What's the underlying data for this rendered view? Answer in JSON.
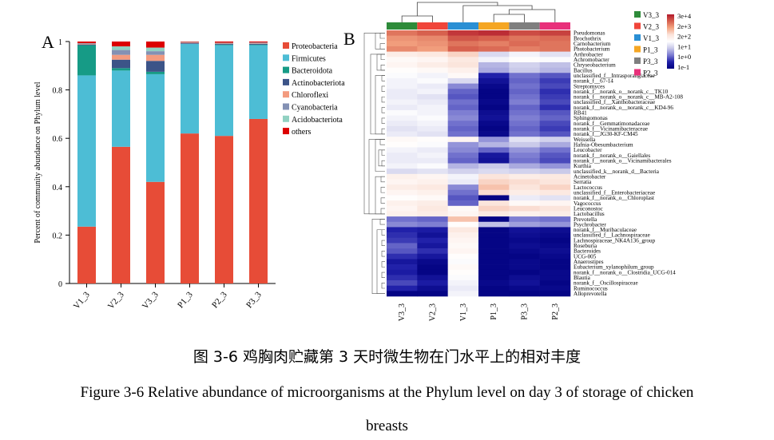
{
  "panel_labels": [
    "A",
    "B"
  ],
  "captions": {
    "cn": "图 3-6  鸡胸肉贮藏第 3 天时微生物在门水平上的相对丰度",
    "en_line1": "Figure 3-6 Relative abundance of microorganisms at the Phylum level on day 3 of storage of chicken",
    "en_line2": "breasts"
  },
  "chart_data": [
    {
      "type": "bar",
      "stacked": true,
      "panel": "A",
      "ylabel": "Percent of community abundance on Phylum level",
      "xlabel": "",
      "ylim": [
        0,
        1
      ],
      "yticks": [
        "0",
        "0.2",
        "0.4",
        "0.6",
        "0.8",
        "1"
      ],
      "categories": [
        "V1_3",
        "V2_3",
        "V3_3",
        "P1_3",
        "P2_3",
        "P3_3"
      ],
      "legend_position": "right",
      "series": [
        {
          "name": "Proteobacteria",
          "color": "#e74c37",
          "values": [
            0.235,
            0.565,
            0.42,
            0.62,
            0.61,
            0.68
          ]
        },
        {
          "name": "Firmicutes",
          "color": "#4dbdd5",
          "values": [
            0.625,
            0.315,
            0.445,
            0.37,
            0.375,
            0.305
          ]
        },
        {
          "name": "Bacteroidota",
          "color": "#169b86",
          "values": [
            0.125,
            0.01,
            0.01,
            0.0,
            0.002,
            0.002
          ]
        },
        {
          "name": "Actinobacteriota",
          "color": "#3c5488",
          "values": [
            0.003,
            0.035,
            0.045,
            0.003,
            0.003,
            0.004
          ]
        },
        {
          "name": "Chloroflexi",
          "color": "#f39b7f",
          "values": [
            0.002,
            0.02,
            0.025,
            0.002,
            0.002,
            0.002
          ]
        },
        {
          "name": "Cyanobacteria",
          "color": "#8491b4",
          "values": [
            0.002,
            0.02,
            0.015,
            0.002,
            0.002,
            0.002
          ]
        },
        {
          "name": "Acidobacteriota",
          "color": "#91d1c2",
          "values": [
            0.001,
            0.015,
            0.015,
            0.001,
            0.001,
            0.001
          ]
        },
        {
          "name": "others",
          "color": "#dc0000",
          "values": [
            0.007,
            0.02,
            0.025,
            0.002,
            0.005,
            0.004
          ]
        }
      ]
    },
    {
      "type": "heatmap",
      "panel": "B",
      "columns": [
        "V3_3",
        "V2_3",
        "V1_3",
        "P1_3",
        "P3_3",
        "P2_3"
      ],
      "column_colors": [
        "#2e8b3a",
        "#f0453a",
        "#2a8fd4",
        "#f5a623",
        "#7f7f7f",
        "#e8307a"
      ],
      "legend": {
        "groups": [
          {
            "name": "V3_3",
            "color": "#2e8b3a"
          },
          {
            "name": "V2_3",
            "color": "#f0453a"
          },
          {
            "name": "V1_3",
            "color": "#2a8fd4"
          },
          {
            "name": "P1_3",
            "color": "#f5a623"
          },
          {
            "name": "P3_3",
            "color": "#7f7f7f"
          },
          {
            "name": "P2_3",
            "color": "#e8307a"
          }
        ],
        "scale_ticks": [
          "3e+4",
          "2e+3",
          "2e+2",
          "1e+1",
          "1e+0",
          "1e-1"
        ],
        "scale_colors": [
          "#b2182b",
          "#d6604d",
          "#f4a582",
          "#fbe3da",
          "#ffffff",
          "#c7c7e8",
          "#7b7bd1",
          "#1f1fa8",
          "#00007f"
        ]
      },
      "scale_min": -1,
      "scale_max": 4.5,
      "rows": [
        "Pseudomonas",
        "Brochothrix",
        "Carnobacterium",
        "Photobacterium",
        "Arthrobacter",
        "Achromobacter",
        "Chryseobacterium",
        "Bacillus",
        "unclassified_f__Intrasporangiaceae",
        "norank_f__67-14",
        "Streptomyces",
        "norank_f__norank_o__norank_c__TK10",
        "norank_f__norank_o__norank_c__MB-A2-108",
        "unclassified_f__Xanthobacteraceae",
        "norank_f__norank_o__norank_c__KD4-96",
        "RB41",
        "Sphingomonas",
        "norank_f__Gemmatimonadaceae",
        "norank_f__Vicinamibacteraceae",
        "norank_f__JG30-KF-CM45",
        "Weissella",
        "Hafnia-Obesumbacterium",
        "Leucobacter",
        "norank_f__norank_o__Gaiellales",
        "norank_f__norank_o__Vicinamibacterales",
        "Kurthia",
        "unclassified_k__norank_d__Bacteria",
        "Acinetobacter",
        "Serratia",
        "Lactococcus",
        "unclassified_f__Enterobacteriaceae",
        "norank_f__norank_o__Chloroplast",
        "Vagococcus",
        "Leuconostoc",
        "Lactobacillus",
        "Prevotella",
        "Psychrobacter",
        "norank_f__Muribaculaceae",
        "unclassified_f__Lachnospiraceae",
        "Lachnospiraceae_NK4A136_group",
        "Roseburia",
        "Bacteroides",
        "UCG-005",
        "Anaerostipes",
        "Eubacterium_xylanophilum_group",
        "norank_f__norank_o__Clostridia_UCG-014",
        "Blautia",
        "norank_f__Oscillospiraceae",
        "Ruminococcus",
        "Alloprevotella"
      ],
      "values": [
        [
          3.6,
          3.8,
          4.2,
          4.3,
          4.0,
          4.1
        ],
        [
          3.3,
          3.4,
          3.9,
          3.8,
          3.6,
          3.7
        ],
        [
          3.2,
          3.3,
          3.6,
          3.5,
          3.7,
          3.6
        ],
        [
          3.4,
          3.2,
          3.8,
          3.7,
          3.5,
          3.6
        ],
        [
          2.2,
          2.3,
          2.6,
          1.3,
          1.6,
          1.4
        ],
        [
          1.9,
          2.0,
          2.3,
          1.6,
          1.8,
          1.7
        ],
        [
          2.0,
          2.2,
          2.4,
          0.9,
          1.2,
          1.0
        ],
        [
          1.8,
          1.9,
          2.1,
          0.8,
          1.1,
          0.9
        ],
        [
          1.7,
          1.6,
          1.9,
          -0.3,
          0.3,
          0.1
        ],
        [
          1.6,
          1.7,
          1.3,
          -0.6,
          0.2,
          -0.1
        ],
        [
          1.6,
          1.5,
          0.5,
          -0.8,
          0.3,
          0.0
        ],
        [
          1.5,
          1.6,
          0.2,
          -0.9,
          0.2,
          -0.2
        ],
        [
          1.5,
          1.4,
          0.1,
          -0.9,
          0.3,
          -0.1
        ],
        [
          1.6,
          1.5,
          0.3,
          -0.8,
          0.4,
          0.0
        ],
        [
          1.5,
          1.6,
          0.2,
          -0.9,
          0.2,
          -0.2
        ],
        [
          1.7,
          1.6,
          0.4,
          -0.7,
          0.3,
          0.1
        ],
        [
          1.6,
          1.7,
          0.5,
          -0.6,
          0.4,
          0.2
        ],
        [
          1.5,
          1.6,
          0.3,
          -0.8,
          0.3,
          0.0
        ],
        [
          1.4,
          1.5,
          0.2,
          -0.9,
          0.2,
          -0.1
        ],
        [
          1.5,
          1.4,
          0.3,
          -0.8,
          0.3,
          0.1
        ],
        [
          1.9,
          1.8,
          2.0,
          0.6,
          1.4,
          1.2
        ],
        [
          1.8,
          1.7,
          0.6,
          0.9,
          1.1,
          0.8
        ],
        [
          1.6,
          1.5,
          0.5,
          0.2,
          0.6,
          0.3
        ],
        [
          1.5,
          1.6,
          0.3,
          -0.5,
          0.4,
          0.1
        ],
        [
          1.5,
          1.5,
          0.2,
          -0.6,
          0.3,
          0.0
        ],
        [
          1.6,
          1.7,
          0.9,
          1.1,
          0.8,
          0.6
        ],
        [
          1.3,
          1.4,
          1.2,
          1.3,
          1.2,
          1.1
        ],
        [
          2.1,
          2.0,
          1.6,
          2.4,
          2.2,
          2.3
        ],
        [
          2.0,
          2.1,
          1.5,
          2.6,
          2.5,
          2.4
        ],
        [
          2.2,
          2.3,
          0.5,
          2.8,
          2.4,
          2.6
        ],
        [
          2.0,
          2.1,
          0.3,
          2.5,
          2.2,
          2.3
        ],
        [
          1.8,
          1.9,
          0.1,
          -0.9,
          1.5,
          1.4
        ],
        [
          2.1,
          2.2,
          0.2,
          2.4,
          1.9,
          2.0
        ],
        [
          2.0,
          2.3,
          1.9,
          2.6,
          2.5,
          2.4
        ],
        [
          2.1,
          2.2,
          2.0,
          2.3,
          2.1,
          2.2
        ],
        [
          0.3,
          0.2,
          2.8,
          -0.9,
          0.4,
          0.3
        ],
        [
          0.5,
          0.4,
          1.8,
          1.0,
          0.7,
          0.6
        ],
        [
          -0.3,
          -0.4,
          2.3,
          -0.9,
          -0.6,
          -0.7
        ],
        [
          -0.2,
          -0.6,
          2.1,
          -0.9,
          -0.7,
          -0.8
        ],
        [
          -0.1,
          -0.3,
          2.0,
          -0.9,
          -0.8,
          -0.9
        ],
        [
          0.2,
          -0.5,
          1.9,
          -0.9,
          -0.7,
          -0.8
        ],
        [
          0.1,
          -0.2,
          2.0,
          -0.9,
          -0.8,
          -0.7
        ],
        [
          -0.2,
          -0.5,
          1.8,
          -0.9,
          -0.9,
          -0.8
        ],
        [
          -0.5,
          -0.8,
          1.7,
          -0.9,
          -0.8,
          -0.9
        ],
        [
          -0.3,
          -0.9,
          1.9,
          -0.9,
          -0.8,
          -0.9
        ],
        [
          -0.4,
          -0.9,
          1.8,
          -0.9,
          -0.9,
          -0.8
        ],
        [
          -0.2,
          -0.6,
          1.7,
          -0.9,
          -0.7,
          -0.8
        ],
        [
          0.0,
          -0.4,
          1.6,
          -0.8,
          -0.6,
          -0.9
        ],
        [
          -0.3,
          -0.7,
          1.5,
          -0.9,
          -0.8,
          -0.8
        ],
        [
          -0.9,
          -0.9,
          1.6,
          -0.9,
          -0.9,
          -0.9
        ]
      ]
    }
  ]
}
